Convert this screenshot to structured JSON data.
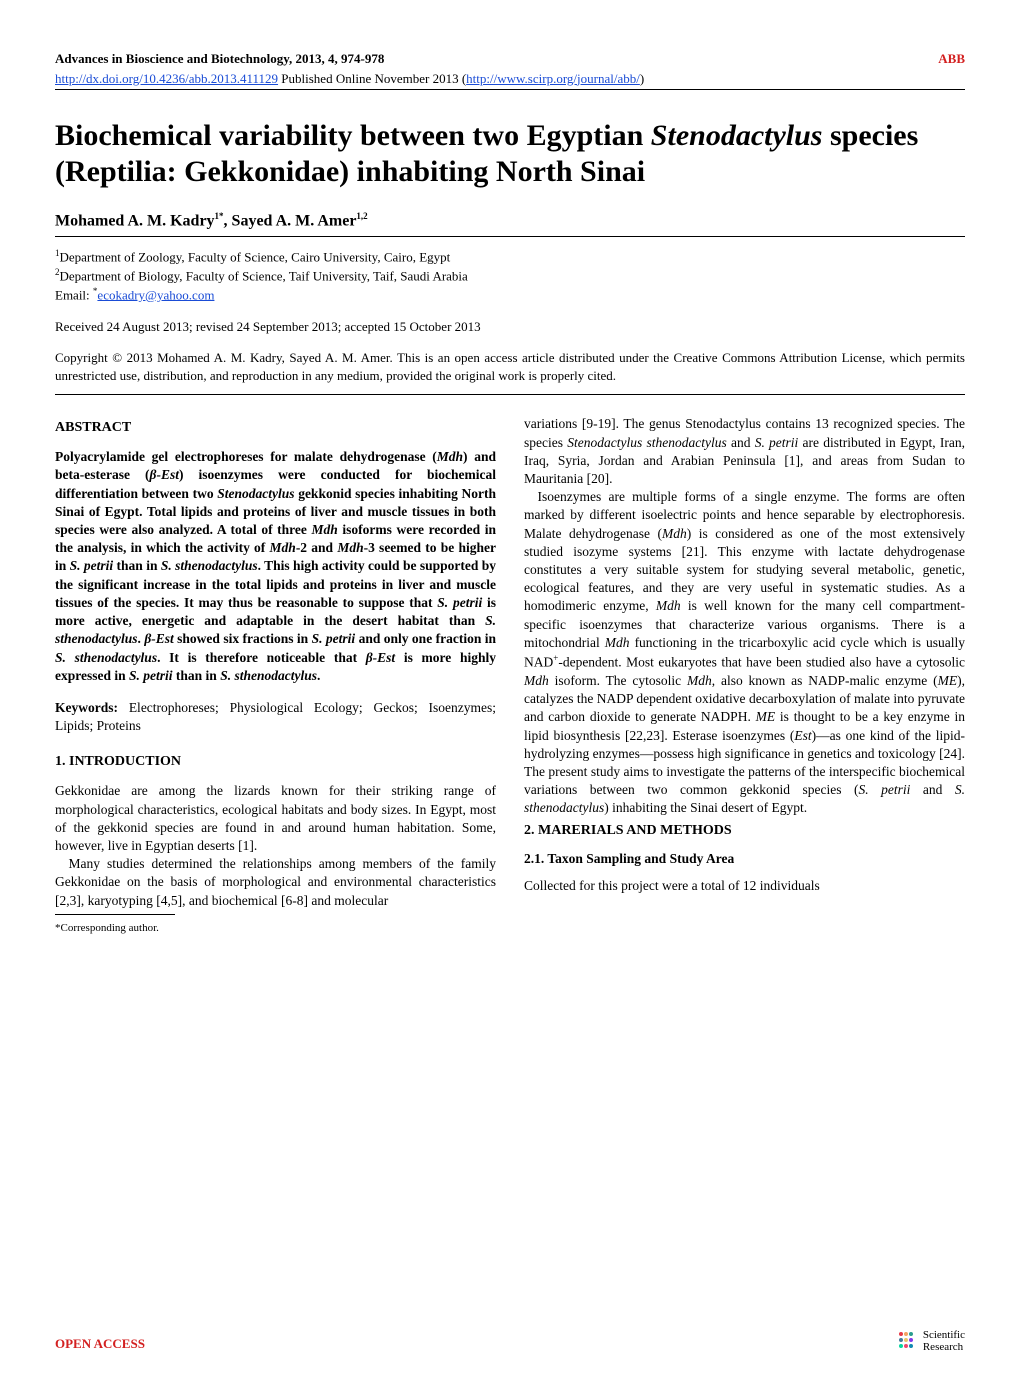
{
  "header": {
    "journal_info": "Advances in Bioscience and Biotechnology, 2013, 4, 974-978",
    "journal_abbr": "ABB",
    "doi_prefix": "http://dx.doi.org/10.4236/abb.2013.411129",
    "doi_suffix": " Published Online November 2013 (",
    "journal_url": "http://www.scirp.org/journal/abb/",
    "doi_close": ")"
  },
  "title": {
    "line1": "Biochemical variability between two Egyptian",
    "species": "Stenodactylus",
    "line2_rest": " species (Reptilia: Gekkonidae) inhabiting North Sinai"
  },
  "authors": {
    "a1_name": "Mohamed A. M. Kadry",
    "a1_sup": "1*",
    "sep": ", ",
    "a2_name": "Sayed A. M. Amer",
    "a2_sup": "1,2"
  },
  "affiliations": {
    "aff1_sup": "1",
    "aff1": "Department of Zoology, Faculty of Science, Cairo University, Cairo, Egypt",
    "aff2_sup": "2",
    "aff2": "Department of Biology, Faculty of Science, Taif University, Taif, Saudi Arabia",
    "email_label": "Email: ",
    "email_sup": "*",
    "email": "ecokadry@yahoo.com"
  },
  "received": "Received 24 August 2013; revised 24 September 2013; accepted 15 October 2013",
  "copyright": "Copyright © 2013 Mohamed A. M. Kadry, Sayed A. M. Amer. This is an open access article distributed under the Creative Commons Attribution License, which permits unrestricted use, distribution, and reproduction in any medium, provided the original work is properly cited.",
  "left_col": {
    "abstract_heading": "ABSTRACT",
    "abstract_body_1": "Polyacrylamide gel electrophoreses for malate dehydrogenase (",
    "mdh_it": "Mdh",
    "abstract_body_2": ") and beta-esterase (",
    "best_it": "β-Est",
    "abstract_body_3": ") isoenzymes were conducted for biochemical differentiation between two ",
    "steno_it": "Stenodactylus",
    "abstract_body_4": " gekkonid species inhabiting North Sinai of Egypt. Total lipids and proteins of liver and muscle tissues in both species were also analyzed. A total of three ",
    "mdh_it2": "Mdh",
    "abstract_body_5": " isoforms were recorded in the analysis, in which the activity of ",
    "mdh2_it": "Mdh",
    "abstract_body_6": "-2 and ",
    "mdh3_it": "Mdh",
    "abstract_body_7": "-3 seemed to be higher in ",
    "spetrii_it": "S. petrii",
    "abstract_body_8": " than in ",
    "sstheno_it": "S. sthenodactylus",
    "abstract_body_9": ". This high activity could be supported by the significant increase in the total lipids and proteins in liver and muscle tissues of the species. It may thus be reasonable to suppose that ",
    "spetrii_it2": "S. petrii",
    "abstract_body_10": " is more active, energetic and adaptable in the desert habitat than ",
    "sstheno_it2": "S. sthenodactylus",
    "abstract_body_11": ". ",
    "best_it2": "β-Est",
    "abstract_body_12": " showed six fractions in ",
    "spetrii_it3": "S. petrii",
    "abstract_body_13": " and only one fraction in ",
    "sstheno_it3": "S. sthenodactylus",
    "abstract_body_14": ". It is therefore noticeable that ",
    "best_it3": "β-Est",
    "abstract_body_15": " is more highly expressed in ",
    "spetrii_it4": "S. petrii",
    "abstract_body_16": " than in ",
    "sstheno_it4": "S. sthenodactylus",
    "abstract_body_17": ".",
    "keywords_label": "Keywords:",
    "keywords_text": " Electrophoreses; Physiological Ecology; Geckos; Isoenzymes; Lipids; Proteins",
    "intro_heading": "1. INTRODUCTION",
    "intro_p1": "Gekkonidae are among the lizards known for their striking range of morphological characteristics, ecological habitats and body sizes. In Egypt, most of the gekkonid species are found in and around human habitation. Some, however, live in Egyptian deserts [1].",
    "intro_p2": "Many studies determined the relationships among members of the family Gekkonidae on the basis of morphological and environmental characteristics [2,3], karyotyping [4,5], and biochemical [6-8] and molecular",
    "corr_note": "*Corresponding author."
  },
  "right_col": {
    "p1_a": "variations [9-19]. The genus Stenodactylus contains 13 recognized species. The species ",
    "sstheno_it": "Stenodactylus sthenodactylus",
    "p1_b": " and ",
    "spetrii_it": "S. petrii",
    "p1_c": " are distributed in Egypt, Iran, Iraq, Syria, Jordan and Arabian Peninsula [1], and areas from Sudan to Mauritania [20].",
    "p2_a": "Isoenzymes are multiple forms of a single enzyme. The forms are often marked by different isoelectric points and hence separable by electrophoresis. Malate dehydrogenase (",
    "mdh_it": "Mdh",
    "p2_b": ") is considered as one of the most extensively studied isozyme systems [21]. This enzyme with lactate dehydrogenase constitutes a very suitable system for studying several metabolic, genetic, ecological features, and they are very useful in systematic studies. As a homodimeric enzyme, ",
    "mdh_it2": "Mdh",
    "p2_c": " is well known for the many cell compartment-specific isoenzymes that characterize various organisms. There is a mitochondrial ",
    "mdh_it3": "Mdh",
    "p2_d": " functioning in the tricarboxylic acid cycle which is usually NAD",
    "nad_sup": "+",
    "p2_e": "-dependent. Most eukaryotes that have been studied also have a cytosolic ",
    "mdh_it4": "Mdh",
    "p2_f": " isoform. The cytosolic ",
    "mdh_it5": "Mdh",
    "p2_g": ", also known as NADP-malic enzyme (",
    "me_it": "ME",
    "p2_h": "), catalyzes the NADP dependent oxidative decarboxylation of malate into pyruvate and carbon dioxide to generate NADPH. ",
    "me_it2": "ME",
    "p2_i": " is thought to be a key enzyme in lipid biosynthesis [22,23]. Esterase isoenzymes (",
    "est_it": "Est",
    "p2_j": ")—as one kind of the lipid-hydrolyzing enzymes—possess high significance in genetics and toxicology [24]. The present study aims to investigate the patterns of the interspecific biochemical variations between two common gekkonid species (",
    "spetrii_it2": "S. petrii",
    "p2_k": " and ",
    "sstheno_it2": "S. sthenodactylus",
    "p2_l": ") inhabiting the Sinai desert of Egypt.",
    "methods_heading": "2. MARERIALS AND METHODS",
    "sub_heading": "2.1. Taxon Sampling and Study Area",
    "p3": "Collected for this project were a total of 12 individuals"
  },
  "footer": {
    "open_access": "OPEN ACCESS",
    "publisher_line1": "Scientific",
    "publisher_line2": "Research"
  },
  "colors": {
    "accent_red": "#d32020",
    "link_blue": "#1a4cd6",
    "logo_colors": [
      "#e63946",
      "#f4a261",
      "#2a9d8f",
      "#457b9d",
      "#e9c46a",
      "#8338ec",
      "#06d6a0",
      "#ef476f",
      "#118ab2"
    ]
  }
}
